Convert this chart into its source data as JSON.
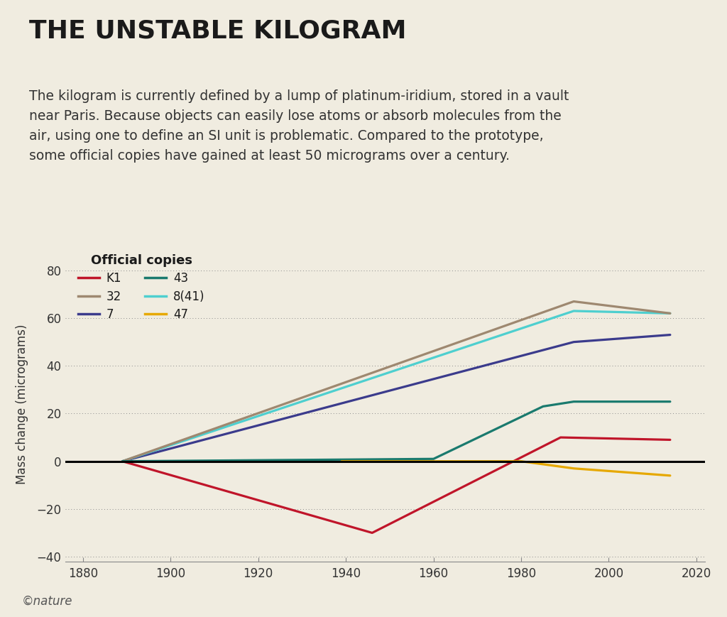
{
  "title": "THE UNSTABLE KILOGRAM",
  "subtitle": "The kilogram is currently defined by a lump of platinum-iridium, stored in a vault\nnear Paris. Because objects can easily lose atoms or absorb molecules from the\nair, using one to define an SI unit is problematic. Compared to the prototype,\nsome official copies have gained at least 50 micrograms over a century.",
  "ylabel": "Mass change (micrograms)",
  "background_color": "#f0ece0",
  "xlim": [
    1876,
    2022
  ],
  "ylim": [
    -42,
    90
  ],
  "yticks": [
    -40,
    -20,
    0,
    20,
    40,
    60,
    80
  ],
  "xticks": [
    1880,
    1900,
    1920,
    1940,
    1960,
    1980,
    2000,
    2020
  ],
  "series": {
    "K1": {
      "color": "#c0152a",
      "data": [
        [
          1889,
          0
        ],
        [
          1946,
          -30
        ],
        [
          1989,
          10
        ],
        [
          2014,
          9
        ]
      ]
    },
    "7": {
      "color": "#3b3b8c",
      "data": [
        [
          1889,
          0
        ],
        [
          1992,
          50
        ],
        [
          2014,
          53
        ]
      ]
    },
    "8(41)": {
      "color": "#4ecfcf",
      "data": [
        [
          1889,
          0
        ],
        [
          1992,
          63
        ],
        [
          2014,
          62
        ]
      ]
    },
    "32": {
      "color": "#9e8870",
      "data": [
        [
          1889,
          0
        ],
        [
          1992,
          67
        ],
        [
          2014,
          62
        ]
      ]
    },
    "43": {
      "color": "#1a7a6e",
      "data": [
        [
          1889,
          0
        ],
        [
          1960,
          1
        ],
        [
          1985,
          23
        ],
        [
          1992,
          25
        ],
        [
          2014,
          25
        ]
      ]
    },
    "47": {
      "color": "#e6a800",
      "data": [
        [
          1939,
          0
        ],
        [
          1980,
          0
        ],
        [
          1992,
          -3
        ],
        [
          2014,
          -6
        ]
      ]
    }
  },
  "legend_order_col1": [
    "K1",
    "7",
    "8(41)"
  ],
  "legend_order_col2": [
    "32",
    "43",
    "47"
  ],
  "legend_title": "Official copies",
  "copyright": "©nature",
  "title_fontsize": 26,
  "subtitle_fontsize": 13.5,
  "axis_label_fontsize": 12,
  "tick_fontsize": 12,
  "legend_fontsize": 12,
  "legend_title_fontsize": 13
}
